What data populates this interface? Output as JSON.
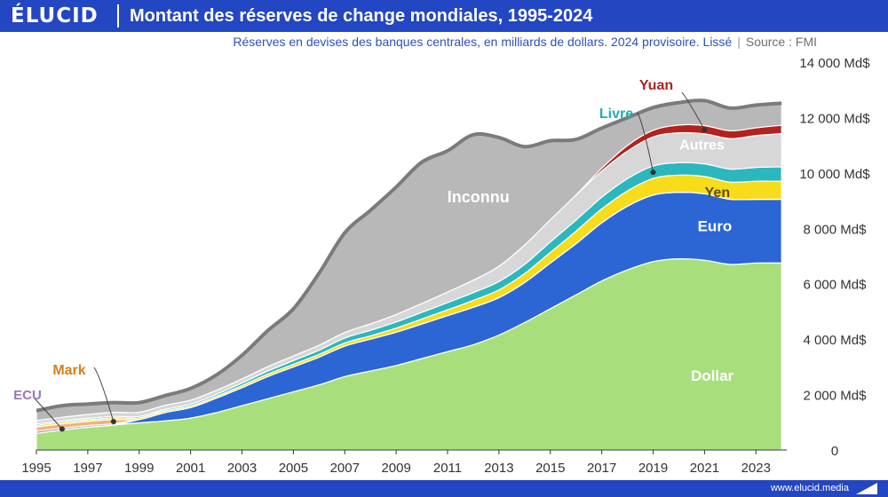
{
  "header": {
    "logo": "ÉLUCID",
    "title": "Montant des réserves de change mondiales, 1995-2024",
    "subtitle": "Réserves en devises des banques centrales, en milliards de dollars. 2024 provisoire. Lissé",
    "separator": "|",
    "source": "Source : FMI"
  },
  "footer": {
    "url": "www.elucid.media"
  },
  "colors": {
    "brand": "#2346c2",
    "Dollar": "#a8df7c",
    "Euro": "#2b66d4",
    "Yen": "#f7dc1c",
    "Livre": "#2cb7be",
    "Autres": "#d7d7d7",
    "Yuan": "#b3221d",
    "Inconnu": "#b8b8b8",
    "ECU": "#a98dc3",
    "Mark": "#f0b27a",
    "totalLine": "#7b7b7b"
  },
  "chart_data": {
    "type": "area",
    "title": "Montant des réserves de change mondiales, 1995-2024",
    "xlabel": "",
    "ylabel": "",
    "x": [
      1995,
      1996,
      1997,
      1998,
      1999,
      2000,
      2001,
      2002,
      2003,
      2004,
      2005,
      2006,
      2007,
      2008,
      2009,
      2010,
      2011,
      2012,
      2013,
      2014,
      2015,
      2016,
      2017,
      2018,
      2019,
      2020,
      2021,
      2022,
      2023,
      2024
    ],
    "xlim": [
      1995,
      2024.2
    ],
    "ylim": [
      0,
      14000
    ],
    "x_ticks": [
      "1995",
      "1997",
      "1999",
      "2001",
      "2003",
      "2005",
      "2007",
      "2009",
      "2011",
      "2013",
      "2015",
      "2017",
      "2019",
      "2021",
      "2023"
    ],
    "y_ticks": [
      "0",
      "2 000 Md$",
      "4 000 Md$",
      "6 000 Md$",
      "8 000 Md$",
      "10 000 Md$",
      "12 000 Md$",
      "14 000 Md$"
    ],
    "series": [
      {
        "name": "Dollar",
        "label": "Dollar",
        "values": [
          600,
          720,
          820,
          900,
          980,
          1050,
          1150,
          1350,
          1600,
          1850,
          2100,
          2350,
          2650,
          2850,
          3050,
          3300,
          3550,
          3800,
          4150,
          4600,
          5100,
          5600,
          6100,
          6500,
          6800,
          6900,
          6850,
          6700,
          6750,
          6750
        ]
      },
      {
        "name": "Euro",
        "label": "Euro",
        "values": [
          0,
          0,
          0,
          0,
          120,
          300,
          380,
          520,
          650,
          800,
          900,
          1000,
          1100,
          1150,
          1200,
          1250,
          1300,
          1350,
          1350,
          1450,
          1650,
          1850,
          2100,
          2300,
          2400,
          2400,
          2400,
          2350,
          2300,
          2300
        ]
      },
      {
        "name": "ECU",
        "label": "ECU",
        "values": [
          80,
          70,
          60,
          50,
          0,
          0,
          0,
          0,
          0,
          0,
          0,
          0,
          0,
          0,
          0,
          0,
          0,
          0,
          0,
          0,
          0,
          0,
          0,
          0,
          0,
          0,
          0,
          0,
          0,
          0
        ]
      },
      {
        "name": "Mark",
        "label": "Mark",
        "values": [
          150,
          150,
          150,
          150,
          0,
          0,
          0,
          0,
          0,
          0,
          0,
          0,
          0,
          0,
          0,
          0,
          0,
          0,
          0,
          0,
          0,
          0,
          0,
          0,
          0,
          0,
          0,
          0,
          0,
          0
        ]
      },
      {
        "name": "Yen",
        "label": "Yen",
        "values": [
          60,
          60,
          60,
          60,
          60,
          60,
          60,
          65,
          75,
          85,
          95,
          100,
          110,
          120,
          150,
          180,
          210,
          250,
          280,
          320,
          380,
          450,
          500,
          550,
          600,
          620,
          620,
          620,
          650,
          650
        ]
      },
      {
        "name": "Livre",
        "label": "Livre",
        "values": [
          50,
          50,
          50,
          50,
          50,
          50,
          60,
          70,
          90,
          110,
          130,
          150,
          180,
          200,
          220,
          240,
          260,
          280,
          300,
          330,
          380,
          400,
          420,
          440,
          450,
          450,
          460,
          470,
          500,
          520
        ]
      },
      {
        "name": "Autres",
        "label": "Autres",
        "values": [
          120,
          130,
          140,
          150,
          150,
          150,
          150,
          150,
          150,
          160,
          170,
          180,
          200,
          230,
          270,
          320,
          380,
          450,
          550,
          700,
          800,
          900,
          950,
          1000,
          1050,
          1080,
          1080,
          1100,
          1150,
          1200
        ]
      },
      {
        "name": "Yuan",
        "label": "Yuan",
        "values": [
          0,
          0,
          0,
          0,
          0,
          0,
          0,
          0,
          0,
          0,
          0,
          0,
          0,
          0,
          0,
          0,
          0,
          0,
          0,
          0,
          0,
          10,
          100,
          200,
          240,
          280,
          300,
          280,
          280,
          300
        ]
      },
      {
        "name": "Inconnu",
        "label": "Inconnu",
        "values": [
          360,
          420,
          380,
          350,
          350,
          350,
          420,
          550,
          850,
          1300,
          1700,
          2600,
          3600,
          4100,
          4600,
          5100,
          5100,
          5250,
          4650,
          3550,
          2850,
          2000,
          1450,
          1000,
          820,
          810,
          900,
          820,
          820,
          800
        ]
      }
    ],
    "annotations": [
      {
        "series": "ECU",
        "label": "ECU",
        "year": 1996
      },
      {
        "series": "Mark",
        "label": "Mark",
        "year": 1998
      },
      {
        "series": "Livre",
        "label": "Livre",
        "year": 2019
      },
      {
        "series": "Yuan",
        "label": "Yuan",
        "year": 2021
      }
    ]
  }
}
